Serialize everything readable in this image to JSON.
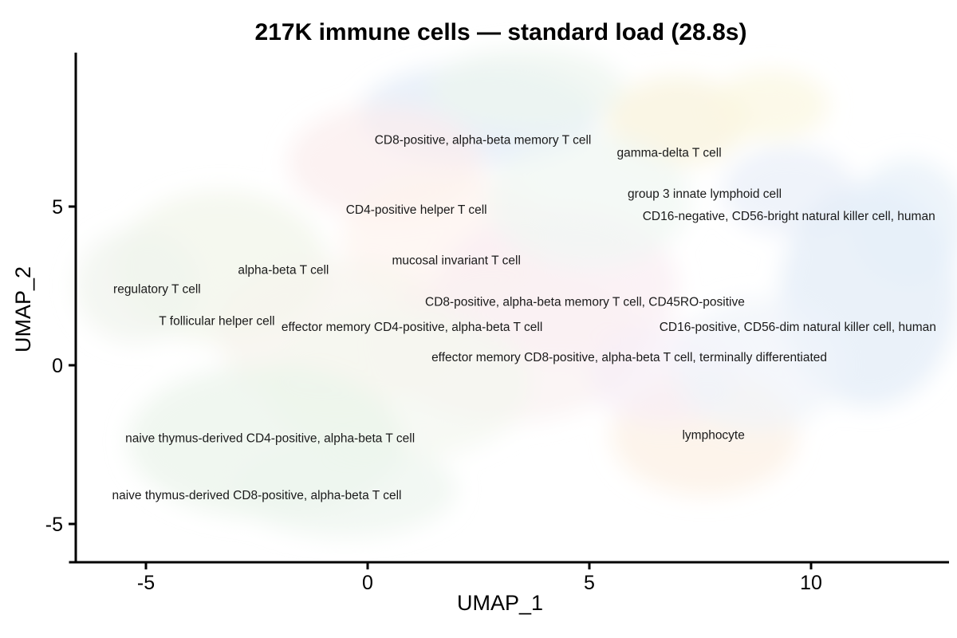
{
  "chart_data": {
    "type": "scatter",
    "title": "217K immune cells — standard load (28.8s)",
    "xlabel": "UMAP_1",
    "ylabel": "UMAP_2",
    "xlim": [
      -6.7,
      13.1
    ],
    "ylim": [
      -6.3,
      9.8
    ],
    "x_ticks": [
      -5,
      0,
      5,
      10
    ],
    "y_ticks": [
      5,
      0,
      -5
    ],
    "grid": false,
    "legend": "none",
    "point_style": "very faint pastel density cloud of ~217,000 cells, one colored blob per annotated cluster",
    "cluster_labels": [
      {
        "label": "CD8-positive, alpha-beta memory T cell",
        "x": 2.6,
        "y": 7.1
      },
      {
        "label": "gamma-delta T cell",
        "x": 6.8,
        "y": 6.7
      },
      {
        "label": "group 3 innate lymphoid cell",
        "x": 7.6,
        "y": 5.4
      },
      {
        "label": "CD4-positive helper T cell",
        "x": 1.1,
        "y": 4.9
      },
      {
        "label": "CD16-negative, CD56-bright natural killer cell, human",
        "x": 9.5,
        "y": 4.7
      },
      {
        "label": "mucosal invariant T cell",
        "x": 2.0,
        "y": 3.3
      },
      {
        "label": "alpha-beta T cell",
        "x": -1.9,
        "y": 3.0
      },
      {
        "label": "regulatory T cell",
        "x": -4.75,
        "y": 2.4
      },
      {
        "label": "CD8-positive, alpha-beta memory T cell, CD45RO-positive",
        "x": 4.9,
        "y": 2.0
      },
      {
        "label": "T follicular helper cell",
        "x": -3.4,
        "y": 1.4
      },
      {
        "label": "effector memory CD4-positive, alpha-beta T cell",
        "x": 1.0,
        "y": 1.2
      },
      {
        "label": "CD16-positive, CD56-dim natural killer cell, human",
        "x": 9.7,
        "y": 1.2
      },
      {
        "label": "effector memory CD8-positive, alpha-beta T cell, terminally differentiated",
        "x": 5.9,
        "y": 0.25
      },
      {
        "label": "naive thymus-derived CD4-positive, alpha-beta T cell",
        "x": -2.2,
        "y": -2.3
      },
      {
        "label": "lymphocyte",
        "x": 7.8,
        "y": -2.2
      },
      {
        "label": "naive thymus-derived CD8-positive, alpha-beta T cell",
        "x": -2.5,
        "y": -4.1
      }
    ],
    "density_blobs": [
      {
        "x": 2.5,
        "y": 7.9,
        "rx": 2.7,
        "ry": 1.6,
        "color": "#dfeaf6"
      },
      {
        "x": 3.6,
        "y": 8.7,
        "rx": 2.2,
        "ry": 1.3,
        "color": "#edf5ee"
      },
      {
        "x": 0.4,
        "y": 6.4,
        "rx": 2.2,
        "ry": 1.8,
        "color": "#fbecec"
      },
      {
        "x": 7.0,
        "y": 7.7,
        "rx": 1.6,
        "ry": 1.4,
        "color": "#f8f2da"
      },
      {
        "x": 9.1,
        "y": 8.2,
        "rx": 1.3,
        "ry": 1.1,
        "color": "#fbf6e0"
      },
      {
        "x": 9.5,
        "y": 5.5,
        "rx": 1.5,
        "ry": 1.4,
        "color": "#e8eef8"
      },
      {
        "x": 11.3,
        "y": 2.2,
        "rx": 2.0,
        "ry": 3.5,
        "color": "#e1ebf7"
      },
      {
        "x": 12.2,
        "y": 4.5,
        "rx": 1.3,
        "ry": 2.0,
        "color": "#e6f0f8"
      },
      {
        "x": 1.8,
        "y": 4.0,
        "rx": 2.4,
        "ry": 2.1,
        "color": "#fdf3ee"
      },
      {
        "x": 4.3,
        "y": 2.5,
        "rx": 2.7,
        "ry": 2.4,
        "color": "#f9edf2"
      },
      {
        "x": 5.0,
        "y": 5.2,
        "rx": 2.3,
        "ry": 2.1,
        "color": "#eff7f2"
      },
      {
        "x": -3.3,
        "y": 3.1,
        "rx": 2.4,
        "ry": 2.4,
        "color": "#f1f5e8"
      },
      {
        "x": -5.2,
        "y": 2.5,
        "rx": 1.4,
        "ry": 1.8,
        "color": "#eff4ec"
      },
      {
        "x": -0.7,
        "y": 1.0,
        "rx": 2.7,
        "ry": 2.3,
        "color": "#f6f4ec"
      },
      {
        "x": 3.2,
        "y": 0.7,
        "rx": 3.0,
        "ry": 2.5,
        "color": "#faf1f1"
      },
      {
        "x": 0.7,
        "y": -0.6,
        "rx": 3.0,
        "ry": 2.4,
        "color": "#f4f6ef"
      },
      {
        "x": -2.3,
        "y": -2.4,
        "rx": 3.1,
        "ry": 2.4,
        "color": "#e9f3ea"
      },
      {
        "x": -0.5,
        "y": -3.9,
        "rx": 2.5,
        "ry": 1.5,
        "color": "#ecf5ee"
      },
      {
        "x": 7.6,
        "y": -2.2,
        "rx": 2.1,
        "ry": 1.9,
        "color": "#fcf0e3"
      },
      {
        "x": 6.7,
        "y": -0.3,
        "rx": 1.7,
        "ry": 1.6,
        "color": "#f6eef6"
      },
      {
        "x": 8.8,
        "y": 0.0,
        "rx": 1.9,
        "ry": 2.1,
        "color": "#eff3f9"
      }
    ]
  },
  "style": {
    "background_color": "#ffffff",
    "axis_color": "#000000",
    "label_color": "#1a1a1a",
    "blob_opacity": 0.7
  }
}
